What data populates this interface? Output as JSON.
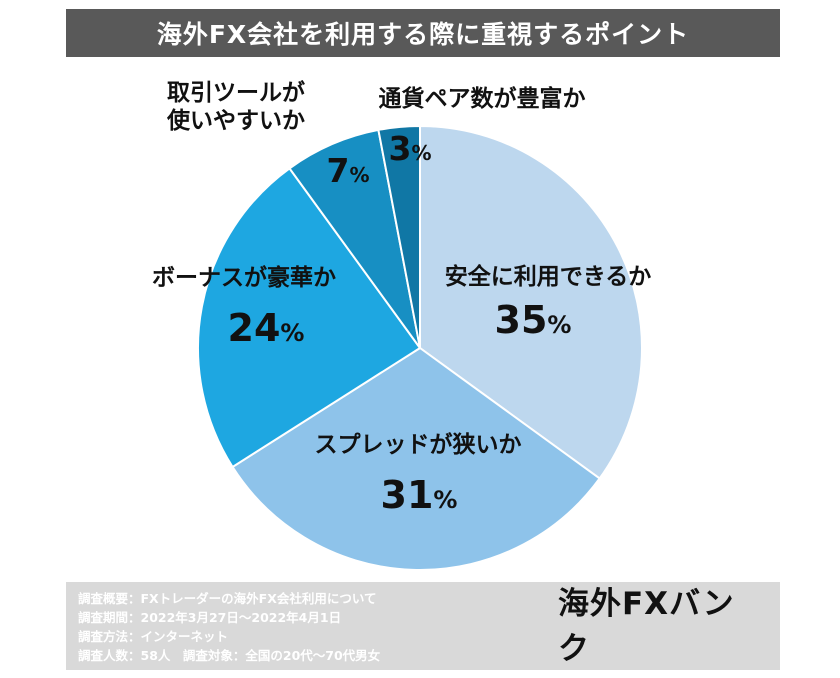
{
  "title": "海外FX会社を利用する際に重視するポイント",
  "chart_data": {
    "type": "pie",
    "title": "海外FX会社を利用する際に重視するポイント",
    "slices": [
      {
        "label": "安全に利用できるか",
        "value": 35,
        "color": "#bdd7ee"
      },
      {
        "label": "スプレッドが狭いか",
        "value": 31,
        "color": "#8ec3ea"
      },
      {
        "label": "ボーナスが豪華か",
        "value": 24,
        "color": "#1ea7e1"
      },
      {
        "label": "取引ツールが使いやすいか",
        "value": 7,
        "color": "#178fc3"
      },
      {
        "label": "通貨ペア数が豊富か",
        "value": 3,
        "color": "#1077a5"
      }
    ],
    "unit": "%"
  },
  "footer": {
    "notes": [
      "調査概要：FXトレーダーの海外FX会社利用について",
      "調査期間：2022年3月27日〜2022年4月1日",
      "調査方法：インターネット",
      "調査人数：58人　調査対象：全国の20代〜70代男女"
    ],
    "logo": "海外FXバンク"
  }
}
